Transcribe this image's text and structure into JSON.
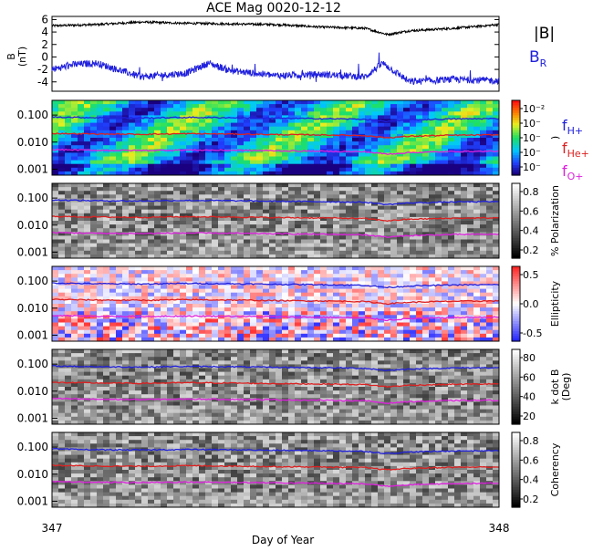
{
  "title": "ACE Mag 0020-12-12",
  "xlabel": "Day of Year",
  "xticks": [
    "347",
    "348"
  ],
  "mag_panel": {
    "ylabel_top": "B",
    "ylabel_bottom": "(nT)",
    "yticks": [
      "6",
      "4",
      "2",
      "0",
      "-2",
      "-4"
    ],
    "legend_total": "|B|",
    "legend_radial": "B",
    "legend_radial_sub": "R",
    "colors": {
      "total": "#000000",
      "radial": "#2020dd"
    }
  },
  "freq_yticks": [
    "0.100",
    "0.010",
    "0.001"
  ],
  "freq_legend": [
    {
      "base": "f",
      "sub": "H+",
      "color": "#2020dd"
    },
    {
      "base": "f",
      "sub": "He+",
      "color": "#dd2020"
    },
    {
      "base": "f",
      "sub": "O+",
      "color": "#dd20dd"
    }
  ],
  "panels": [
    {
      "id": "power",
      "cbar_ticks": [
        "10⁻²",
        "10⁻",
        "10⁻",
        "10⁻",
        "10⁻"
      ],
      "cbar_label": ")",
      "cmap": "rainbow"
    },
    {
      "id": "polarization",
      "cbar_ticks": [
        "0.8",
        "0.6",
        "0.4",
        "0.2"
      ],
      "cbar_label": "% Polarization",
      "cmap": "gray"
    },
    {
      "id": "ellipticity",
      "cbar_ticks": [
        "0.5",
        "0.0",
        "-0.5"
      ],
      "cbar_label": "Ellipticity",
      "cmap": "bwr"
    },
    {
      "id": "kdotb",
      "cbar_ticks": [
        "80",
        "60",
        "40",
        "20"
      ],
      "cbar_label": "k dot B",
      "cbar_label2": "(Deg)",
      "cmap": "gray"
    },
    {
      "id": "coherency",
      "cbar_ticks": [
        "0.8",
        "0.6",
        "0.4",
        "0.2"
      ],
      "cbar_label": "Coherency",
      "cmap": "gray"
    }
  ],
  "chart_data": {
    "type": "line",
    "title": "ACE Mag 0020-12-12",
    "xlabel": "Day of Year",
    "xlim": [
      347,
      348
    ],
    "mag": {
      "ylim": [
        -5.5,
        6.5
      ],
      "series": [
        {
          "name": "|B|",
          "x": [
            347.0,
            347.1,
            347.2,
            347.3,
            347.4,
            347.5,
            347.6,
            347.7,
            347.75,
            347.8,
            347.9,
            348.0
          ],
          "y": [
            5.0,
            5.2,
            5.6,
            5.4,
            5.3,
            5.2,
            4.8,
            4.6,
            3.6,
            4.2,
            4.6,
            5.2
          ]
        },
        {
          "name": "B",
          "x": [
            347.0,
            347.05,
            347.1,
            347.2,
            347.3,
            347.35,
            347.4,
            347.5,
            347.6,
            347.7,
            347.74,
            347.8,
            347.9,
            348.0
          ],
          "y": [
            -2.0,
            -1.2,
            -1.0,
            -3.2,
            -2.6,
            -1.0,
            -2.2,
            -3.0,
            -2.8,
            -3.2,
            -1.0,
            -4.0,
            -3.6,
            -3.8
          ]
        }
      ]
    },
    "freq": {
      "ylim": [
        0.0006,
        0.35
      ],
      "scale": "log",
      "series": [
        {
          "name": "fH+",
          "x": [
            347.0,
            347.1,
            347.2,
            347.3,
            347.4,
            347.5,
            347.6,
            347.7,
            347.75,
            347.8,
            347.9,
            348.0
          ],
          "y": [
            0.085,
            0.08,
            0.078,
            0.082,
            0.08,
            0.076,
            0.074,
            0.07,
            0.058,
            0.066,
            0.072,
            0.074
          ]
        },
        {
          "name": "fHe+",
          "x": [
            347.0,
            347.1,
            347.2,
            347.3,
            347.4,
            347.5,
            347.6,
            347.7,
            347.75,
            347.8,
            347.9,
            348.0
          ],
          "y": [
            0.021,
            0.02,
            0.0195,
            0.0205,
            0.02,
            0.019,
            0.0185,
            0.0175,
            0.0145,
            0.0165,
            0.018,
            0.0185
          ]
        },
        {
          "name": "fO+",
          "x": [
            347.0,
            347.1,
            347.2,
            347.3,
            347.4,
            347.5,
            347.6,
            347.7,
            347.75,
            347.8,
            347.9,
            348.0
          ],
          "y": [
            0.0053,
            0.005,
            0.0049,
            0.0051,
            0.005,
            0.0048,
            0.0046,
            0.0044,
            0.0036,
            0.0041,
            0.0045,
            0.0046
          ]
        }
      ]
    }
  }
}
